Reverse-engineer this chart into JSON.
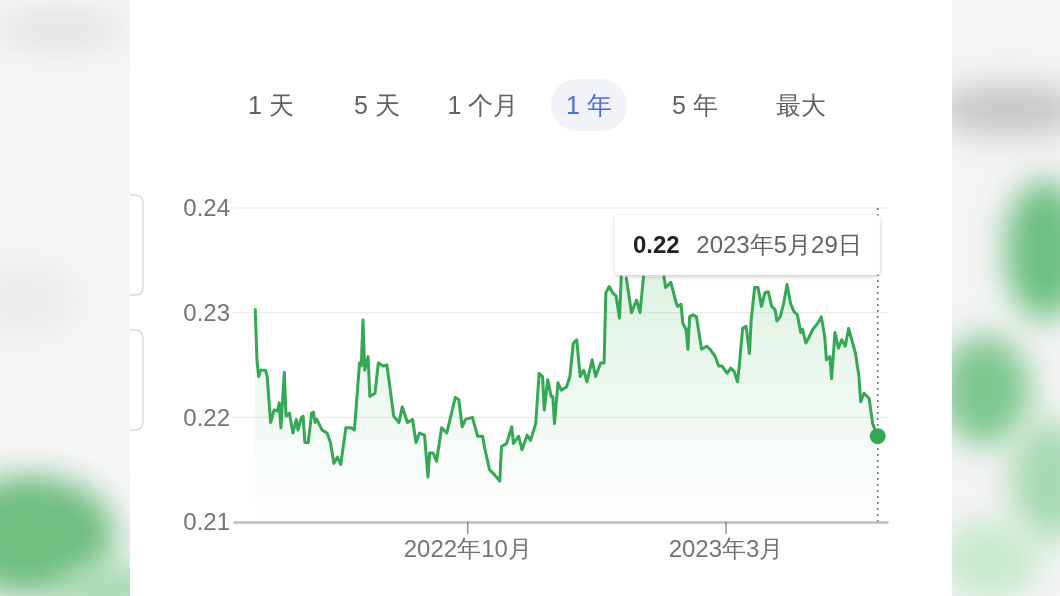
{
  "chart_data": {
    "type": "area",
    "xlim": [
      "2022-05-17",
      "2023-06-04"
    ],
    "xticks": [
      {
        "value": "2022-10-01",
        "label": "2022年10月"
      },
      {
        "value": "2023-03-01",
        "label": "2023年3月"
      }
    ],
    "ylim": [
      0.21,
      0.24
    ],
    "yticks": [
      0.21,
      0.22,
      0.23,
      0.24
    ],
    "grid": "y",
    "series": [
      {
        "color": "#34a853",
        "x": [
          "2022-05-30",
          "2022-05-31",
          "2022-06-01",
          "2022-06-02",
          "2022-06-05",
          "2022-06-06",
          "2022-06-08",
          "2022-06-10",
          "2022-06-12",
          "2022-06-13",
          "2022-06-14",
          "2022-06-16",
          "2022-06-17",
          "2022-06-19",
          "2022-06-21",
          "2022-06-23",
          "2022-06-24",
          "2022-06-26",
          "2022-06-27",
          "2022-06-28",
          "2022-06-30",
          "2022-07-02",
          "2022-07-03",
          "2022-07-04",
          "2022-07-05",
          "2022-07-08",
          "2022-07-11",
          "2022-07-13",
          "2022-07-15",
          "2022-07-17",
          "2022-07-19",
          "2022-07-22",
          "2022-07-25",
          "2022-07-27",
          "2022-07-30",
          "2022-07-31",
          "2022-08-01",
          "2022-08-02",
          "2022-08-04",
          "2022-08-05",
          "2022-08-08",
          "2022-08-10",
          "2022-08-13",
          "2022-08-15",
          "2022-08-19",
          "2022-08-22",
          "2022-08-24",
          "2022-08-27",
          "2022-08-30",
          "2022-09-01",
          "2022-09-03",
          "2022-09-06",
          "2022-09-08",
          "2022-09-09",
          "2022-09-11",
          "2022-09-13",
          "2022-09-16",
          "2022-09-19",
          "2022-09-24",
          "2022-09-26",
          "2022-09-28",
          "2022-09-30",
          "2022-10-04",
          "2022-10-07",
          "2022-10-10",
          "2022-10-11",
          "2022-10-14",
          "2022-10-17",
          "2022-10-20",
          "2022-10-21",
          "2022-10-24",
          "2022-10-27",
          "2022-10-28",
          "2022-10-31",
          "2022-11-02",
          "2022-11-05",
          "2022-11-07",
          "2022-11-10",
          "2022-11-12",
          "2022-11-14",
          "2022-11-15",
          "2022-11-17",
          "2022-11-19",
          "2022-11-20",
          "2022-11-21",
          "2022-11-23",
          "2022-11-25",
          "2022-11-28",
          "2022-11-30",
          "2022-12-02",
          "2022-12-04",
          "2022-12-06",
          "2022-12-08",
          "2022-12-10",
          "2022-12-13",
          "2022-12-15",
          "2022-12-18",
          "2022-12-20",
          "2022-12-21",
          "2022-12-23",
          "2022-12-25",
          "2022-12-27",
          "2022-12-29",
          "2022-12-30",
          "2022-12-31",
          "2023-01-02",
          "2023-01-05",
          "2023-01-08",
          "2023-01-10",
          "2023-01-12",
          "2023-01-18",
          "2023-01-24",
          "2023-01-25",
          "2023-01-28",
          "2023-01-31",
          "2023-02-01",
          "2023-02-03",
          "2023-02-04",
          "2023-02-06",
          "2023-02-07",
          "2023-02-08",
          "2023-02-10",
          "2023-02-12",
          "2023-02-15",
          "2023-02-18",
          "2023-02-20",
          "2023-02-23",
          "2023-02-25",
          "2023-02-27",
          "2023-03-02",
          "2023-03-04",
          "2023-03-06",
          "2023-03-08",
          "2023-03-09",
          "2023-03-11",
          "2023-03-13",
          "2023-03-15",
          "2023-03-16",
          "2023-03-18",
          "2023-03-20",
          "2023-03-22",
          "2023-03-24",
          "2023-03-26",
          "2023-03-28",
          "2023-03-30",
          "2023-03-31",
          "2023-04-02",
          "2023-04-04",
          "2023-04-06",
          "2023-04-08",
          "2023-04-10",
          "2023-04-12",
          "2023-04-14",
          "2023-04-15",
          "2023-04-17",
          "2023-04-19",
          "2023-04-21",
          "2023-04-24",
          "2023-04-26",
          "2023-04-28",
          "2023-04-29",
          "2023-05-01",
          "2023-05-02",
          "2023-05-04",
          "2023-05-06",
          "2023-05-08",
          "2023-05-10",
          "2023-05-12",
          "2023-05-14",
          "2023-05-16",
          "2023-05-18",
          "2023-05-19",
          "2023-05-21",
          "2023-05-24",
          "2023-05-26",
          "2023-05-29"
        ],
        "values": [
          0.2303,
          0.2255,
          0.2239,
          0.2245,
          0.2245,
          0.2239,
          0.2195,
          0.2207,
          0.2206,
          0.2214,
          0.219,
          0.2243,
          0.2201,
          0.2204,
          0.2185,
          0.2198,
          0.2188,
          0.22,
          0.2201,
          0.2176,
          0.2176,
          0.2204,
          0.2205,
          0.2195,
          0.2198,
          0.2188,
          0.2185,
          0.2176,
          0.2156,
          0.2162,
          0.2155,
          0.219,
          0.219,
          0.2188,
          0.2252,
          0.2249,
          0.2293,
          0.2245,
          0.2258,
          0.222,
          0.2223,
          0.2252,
          0.2249,
          0.225,
          0.2201,
          0.2195,
          0.221,
          0.2195,
          0.2198,
          0.2176,
          0.2185,
          0.2183,
          0.2143,
          0.2166,
          0.2166,
          0.2158,
          0.219,
          0.2185,
          0.2219,
          0.2217,
          0.2191,
          0.2198,
          0.22,
          0.2182,
          0.2182,
          0.2172,
          0.215,
          0.2145,
          0.2139,
          0.2172,
          0.2175,
          0.2191,
          0.2175,
          0.2182,
          0.2169,
          0.2183,
          0.2178,
          0.2194,
          0.2242,
          0.2239,
          0.2207,
          0.2236,
          0.222,
          0.222,
          0.2194,
          0.2233,
          0.2226,
          0.2229,
          0.2239,
          0.2271,
          0.2274,
          0.2239,
          0.2245,
          0.2234,
          0.2255,
          0.2239,
          0.2252,
          0.2252,
          0.2319,
          0.2325,
          0.2319,
          0.2316,
          0.2295,
          0.2334,
          null,
          0.2333,
          0.23,
          0.2312,
          0.23,
          0.2334,
          null,
          0.2334,
          0.2324,
          0.2329,
          0.231,
          0.2306,
          0.2308,
          0.229,
          0.2284,
          0.2265,
          0.2296,
          0.2298,
          0.2296,
          0.2265,
          0.2268,
          0.2265,
          0.2258,
          0.2249,
          0.2249,
          0.2242,
          0.2247,
          0.2244,
          0.2234,
          0.2249,
          0.2285,
          0.2287,
          0.2261,
          0.2293,
          0.2324,
          0.2324,
          0.2306,
          0.2319,
          0.232,
          0.2306,
          0.2303,
          0.2292,
          0.2296,
          0.2309,
          0.2327,
          0.2309,
          0.2301,
          0.2298,
          0.2281,
          0.2284,
          0.2271,
          0.2277,
          0.2284,
          0.229,
          0.2296,
          0.2277,
          0.2255,
          0.2258,
          0.2237,
          0.2281,
          0.2266,
          0.2274,
          0.2268,
          0.2285,
          0.2273,
          0.2261,
          0.2239,
          0.2215,
          0.2223,
          0.2218,
          0.2194,
          0.2182
        ]
      },
      {
        "type": "scatter",
        "color": "#34a853",
        "marker": "circle",
        "x": [
          "2023-05-29"
        ],
        "values": [
          0.2182
        ]
      }
    ],
    "ref_lines": [
      {
        "axis": "x",
        "value": "2023-05-29",
        "line_style": "dotted",
        "color": "#757575",
        "label": "0.22 2023年5月29日"
      }
    ],
    "annotations": [
      "1 天",
      "5 天",
      "1 个月",
      "1 年",
      "5 年",
      "最大"
    ]
  }
}
